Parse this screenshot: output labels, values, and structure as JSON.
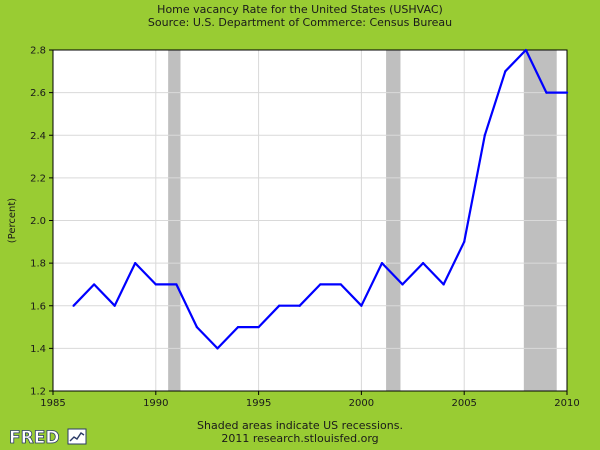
{
  "chart_data": {
    "type": "line",
    "title": "Home vacancy Rate for the United States (USHVAC)",
    "subtitle": "Source: U.S. Department of Commerce: Census Bureau",
    "xlabel": "",
    "ylabel": "(Percent)",
    "xlim": [
      1985,
      2010
    ],
    "ylim": [
      1.2,
      2.8
    ],
    "x_ticks": [
      "1985",
      "1990",
      "1995",
      "2000",
      "2005",
      "2010"
    ],
    "y_ticks": [
      "1.2",
      "1.4",
      "1.6",
      "1.8",
      "2.0",
      "2.2",
      "2.4",
      "2.6",
      "2.8"
    ],
    "grid": true,
    "series": [
      {
        "x": [
          1986,
          1987,
          1988,
          1989,
          1990,
          1991,
          1992,
          1993,
          1994,
          1995,
          1996,
          1997,
          1998,
          1999,
          2000,
          2001,
          2002,
          2003,
          2004,
          2005,
          2006,
          2007,
          2008,
          2009,
          2010
        ],
        "values": [
          1.6,
          1.7,
          1.6,
          1.8,
          1.7,
          1.7,
          1.5,
          1.4,
          1.5,
          1.5,
          1.6,
          1.6,
          1.7,
          1.7,
          1.6,
          1.8,
          1.7,
          1.8,
          1.7,
          1.9,
          2.4,
          2.7,
          2.8,
          2.6,
          2.6
        ],
        "color": "#0000ff"
      }
    ],
    "recessions": [
      {
        "start": 1990.6,
        "end": 1991.2
      },
      {
        "start": 2001.2,
        "end": 2001.9
      },
      {
        "start": 2007.9,
        "end": 2009.5
      }
    ],
    "recession_color": "#bfbfbf"
  },
  "footer": {
    "line1": "Shaded areas indicate US recessions.",
    "line2": "2011 research.stlouisfed.org"
  },
  "logo": {
    "text": "FRED"
  }
}
